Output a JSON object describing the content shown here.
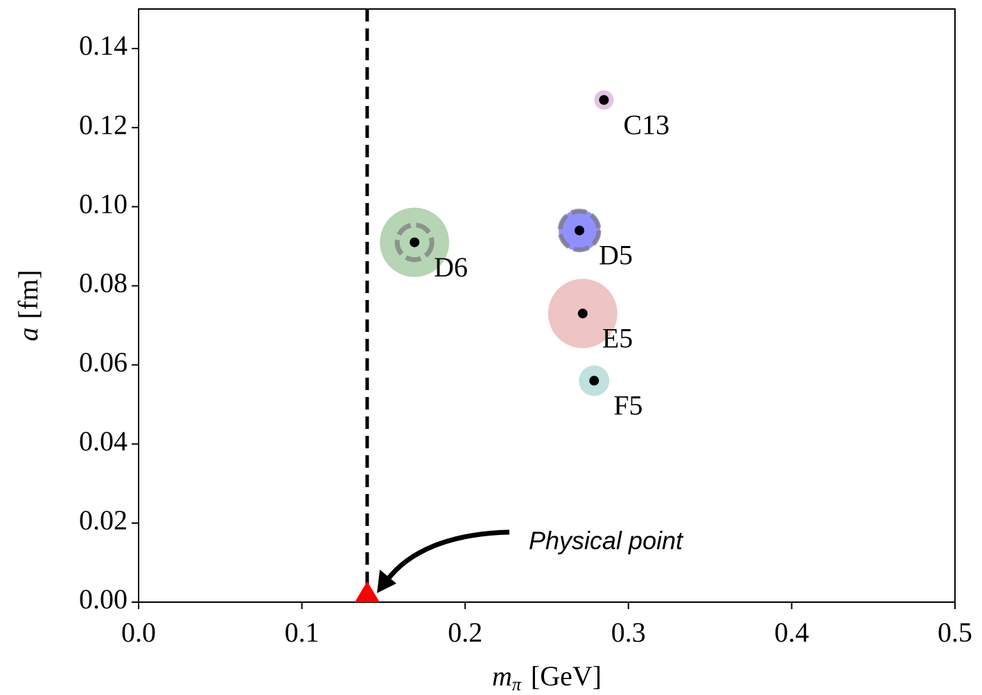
{
  "chart_data": {
    "type": "scatter",
    "xlabel": {
      "symbol": "m",
      "sub": "π",
      "unit": "[GeV]"
    },
    "ylabel": {
      "symbol": "a",
      "unit": "[fm]"
    },
    "xlim": [
      0,
      0.5
    ],
    "ylim": [
      0,
      0.15
    ],
    "xticks": [
      {
        "value": 0,
        "label": "0.0"
      },
      0.1,
      0.2,
      0.3,
      0.4,
      0.5
    ],
    "yticks": [
      {
        "value": 0,
        "label": "0.00"
      },
      0.02,
      0.04,
      0.06,
      0.08,
      {
        "value": 0.1,
        "label": "0.10"
      },
      0.12,
      0.14
    ],
    "points": {
      "labels": [
        "C13",
        "D6",
        "D5",
        "E5",
        "F5"
      ],
      "x": [
        0.285,
        0.169,
        0.27,
        0.272,
        0.279
      ],
      "values": [
        0.127,
        0.091,
        0.094,
        0.073,
        0.056
      ],
      "sizes": [
        14,
        50,
        30,
        50,
        22
      ],
      "ring_sizes": [
        null,
        25,
        28,
        null,
        null
      ],
      "colors": [
        "#d9aed9",
        "#9cc79c",
        "#6b6bff",
        "#e8b0b0",
        "#acd6d6"
      ]
    },
    "physical_point": {
      "x": 0.14,
      "y": 0,
      "color": "#ff0000",
      "annotation": "Physical point"
    }
  }
}
